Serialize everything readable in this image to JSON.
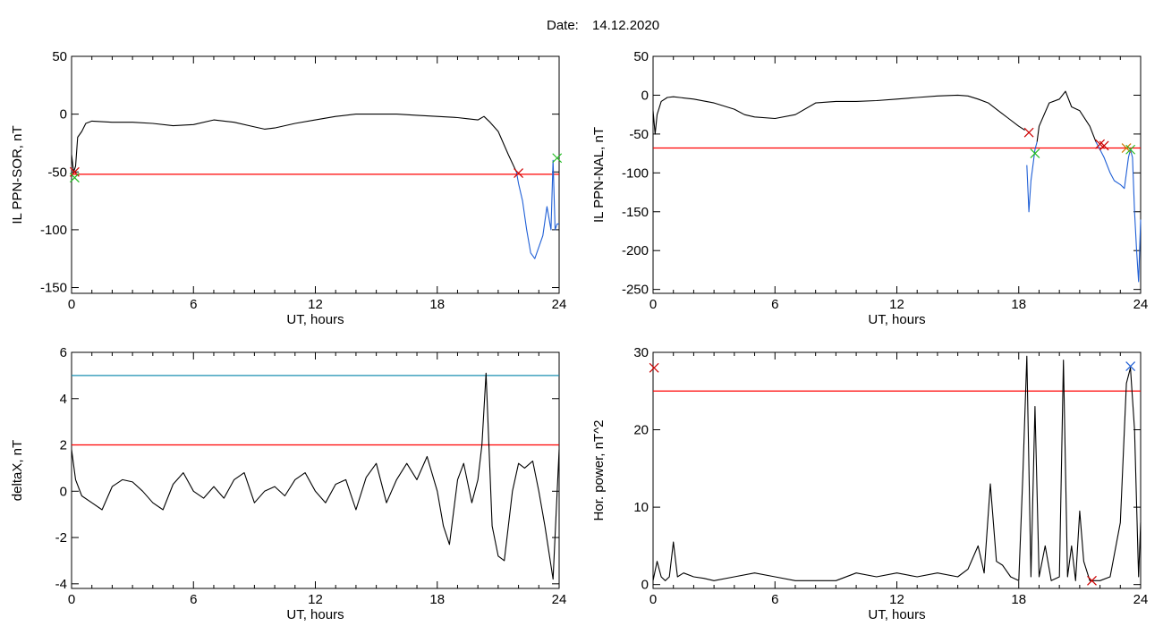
{
  "header": {
    "date_label": "Date:",
    "date_value": "14.12.2020"
  },
  "colors": {
    "trace": "#000000",
    "threshold": "#ff0000",
    "blue_trace": "#1f5fd6",
    "marker_red": "#cc0000",
    "marker_green": "#22bb22",
    "marker_blue": "#1f5fd6",
    "marker_orange": "#cc7700",
    "threshold_cyan": "#1a8fb0"
  },
  "chart_data": [
    {
      "type": "line",
      "xlabel": "UT, hours",
      "ylabel": "IL PPN-SOR, nT",
      "xlim": [
        0,
        24
      ],
      "ylim": [
        -155,
        50
      ],
      "xticks": [
        0,
        6,
        12,
        18,
        24
      ],
      "yticks": [
        50,
        0,
        -50,
        -100,
        -150
      ],
      "threshold": -52,
      "series": [
        {
          "color": "black",
          "x": [
            0,
            0.1,
            0.2,
            0.3,
            0.5,
            0.7,
            1,
            2,
            3,
            4,
            5,
            6,
            7,
            8,
            9,
            9.5,
            10,
            11,
            12,
            13,
            14,
            15,
            16,
            17,
            18,
            19,
            19.5,
            20,
            20.3,
            20.6,
            21,
            21.5,
            21.9
          ],
          "y": [
            -35,
            -50,
            -45,
            -20,
            -15,
            -8,
            -6,
            -7,
            -7,
            -8,
            -10,
            -9,
            -5,
            -7,
            -11,
            -13,
            -12,
            -8,
            -5,
            -2,
            0,
            0,
            0,
            -1,
            -2,
            -3,
            -4,
            -5,
            -2,
            -7,
            -15,
            -35,
            -50
          ]
        },
        {
          "color": "blue",
          "x": [
            21.9,
            22,
            22.2,
            22.4,
            22.6,
            22.8,
            23,
            23.2,
            23.4,
            23.6,
            23.7,
            23.8,
            23.9,
            24
          ],
          "y": [
            -50,
            -60,
            -75,
            -100,
            -120,
            -125,
            -115,
            -105,
            -80,
            -100,
            -40,
            -100,
            -95,
            -95
          ]
        }
      ],
      "markers": [
        {
          "symbol": "x",
          "color": "red",
          "x": 0.15,
          "y": -50
        },
        {
          "symbol": "x",
          "color": "green",
          "x": 0.15,
          "y": -55
        },
        {
          "symbol": "x",
          "color": "red",
          "x": 22.0,
          "y": -51
        },
        {
          "symbol": "x",
          "color": "green",
          "x": 23.9,
          "y": -38
        }
      ]
    },
    {
      "type": "line",
      "xlabel": "UT, hours",
      "ylabel": "IL PPN-NAL, nT",
      "xlim": [
        0,
        24
      ],
      "ylim": [
        -255,
        50
      ],
      "xticks": [
        0,
        6,
        12,
        18,
        24
      ],
      "yticks": [
        50,
        0,
        -50,
        -100,
        -150,
        -200,
        -250
      ],
      "threshold": -68,
      "series": [
        {
          "color": "black",
          "x": [
            0,
            0.1,
            0.2,
            0.4,
            0.7,
            1,
            2,
            3,
            4,
            4.5,
            5,
            6,
            7,
            8,
            9,
            10,
            11,
            12,
            13,
            14,
            15,
            15.5,
            16,
            16.5,
            17,
            17.5,
            18,
            18.3
          ],
          "y": [
            -20,
            -50,
            -25,
            -8,
            -3,
            -2,
            -5,
            -10,
            -18,
            -25,
            -28,
            -30,
            -25,
            -10,
            -8,
            -8,
            -7,
            -5,
            -3,
            -1,
            0,
            -1,
            -5,
            -10,
            -20,
            -30,
            -40,
            -45
          ]
        },
        {
          "color": "blue",
          "x": [
            18.4,
            18.5,
            18.6,
            18.8,
            18.9
          ],
          "y": [
            -90,
            -150,
            -110,
            -70,
            -60
          ]
        },
        {
          "color": "black",
          "x": [
            18.9,
            19,
            19.5,
            20,
            20.3,
            20.6,
            21,
            21.5,
            21.8
          ],
          "y": [
            -60,
            -40,
            -10,
            -5,
            5,
            -15,
            -20,
            -40,
            -60
          ]
        },
        {
          "color": "blue",
          "x": [
            21.8,
            22,
            22.2,
            22.5,
            22.7,
            23,
            23.2,
            23.4,
            23.5,
            23.6,
            23.7,
            23.8,
            23.9,
            24
          ],
          "y": [
            -60,
            -70,
            -80,
            -100,
            -110,
            -115,
            -120,
            -80,
            -70,
            -80,
            -150,
            -200,
            -240,
            -160
          ]
        }
      ],
      "markers": [
        {
          "symbol": "x",
          "color": "red",
          "x": 18.5,
          "y": -48
        },
        {
          "symbol": "x",
          "color": "green",
          "x": 18.8,
          "y": -75
        },
        {
          "symbol": "x",
          "color": "red",
          "x": 22.0,
          "y": -63
        },
        {
          "symbol": "x",
          "color": "red",
          "x": 22.2,
          "y": -65
        },
        {
          "symbol": "x",
          "color": "orange",
          "x": 23.3,
          "y": -68
        },
        {
          "symbol": "x",
          "color": "green",
          "x": 23.5,
          "y": -70
        }
      ]
    },
    {
      "type": "line",
      "xlabel": "UT, hours",
      "ylabel": "deltaX, nT",
      "xlim": [
        0,
        24
      ],
      "ylim": [
        -4.2,
        6
      ],
      "xticks": [
        0,
        6,
        12,
        18,
        24
      ],
      "yticks": [
        6,
        4,
        2,
        0,
        -2,
        -4
      ],
      "threshold": 2,
      "threshold2": 5,
      "series": [
        {
          "color": "black",
          "x": [
            0,
            0.2,
            0.5,
            1,
            1.5,
            2,
            2.5,
            3,
            3.5,
            4,
            4.5,
            5,
            5.5,
            6,
            6.5,
            7,
            7.5,
            8,
            8.5,
            9,
            9.5,
            10,
            10.5,
            11,
            11.5,
            12,
            12.5,
            13,
            13.5,
            14,
            14.5,
            15,
            15.5,
            16,
            16.5,
            17,
            17.5,
            18,
            18.3,
            18.6,
            19,
            19.3,
            19.7,
            20,
            20.2,
            20.4,
            20.7,
            21,
            21.3,
            21.7,
            22,
            22.3,
            22.7,
            23,
            23.3,
            23.7,
            24
          ],
          "y": [
            1.8,
            0.5,
            -0.2,
            -0.5,
            -0.8,
            0.2,
            0.5,
            0.4,
            0,
            -0.5,
            -0.8,
            0.3,
            0.8,
            0,
            -0.3,
            0.2,
            -0.3,
            0.5,
            0.8,
            -0.5,
            0,
            0.2,
            -0.2,
            0.5,
            0.8,
            0,
            -0.5,
            0.3,
            0.5,
            -0.8,
            0.6,
            1.2,
            -0.5,
            0.5,
            1.2,
            0.5,
            1.5,
            0,
            -1.5,
            -2.3,
            0.5,
            1.2,
            -0.5,
            0.5,
            2,
            5.1,
            -1.5,
            -2.8,
            -3,
            0,
            1.2,
            1,
            1.3,
            0,
            -1.5,
            -3.8,
            1.8
          ]
        }
      ],
      "markers": []
    },
    {
      "type": "line",
      "xlabel": "UT, hours",
      "ylabel": "Hor. power, nT^2",
      "xlim": [
        0,
        24
      ],
      "ylim": [
        -0.5,
        30
      ],
      "xticks": [
        0,
        6,
        12,
        18,
        24
      ],
      "yticks": [
        30,
        20,
        10,
        0
      ],
      "threshold": 25,
      "series": [
        {
          "color": "black",
          "x": [
            0,
            0.2,
            0.4,
            0.6,
            0.8,
            1,
            1.2,
            1.5,
            2,
            2.5,
            3,
            4,
            5,
            6,
            7,
            8,
            9,
            10,
            11,
            12,
            13,
            14,
            15,
            15.5,
            16,
            16.3,
            16.6,
            16.9,
            17.2,
            17.6,
            18,
            18.2,
            18.4,
            18.6,
            18.8,
            19,
            19.3,
            19.6,
            20,
            20.2,
            20.4,
            20.6,
            20.8,
            21,
            21.2,
            21.5,
            22,
            22.5,
            23,
            23.3,
            23.5,
            23.7,
            23.9,
            24
          ],
          "y": [
            0.5,
            3,
            1,
            0.5,
            1,
            5.5,
            1,
            1.5,
            1,
            0.8,
            0.5,
            1,
            1.5,
            1,
            0.5,
            0.5,
            0.5,
            1.5,
            1,
            1.5,
            1,
            1.5,
            1,
            2,
            5,
            1.5,
            13,
            3,
            2.5,
            1,
            0.5,
            14,
            29.5,
            1,
            23,
            1,
            5,
            0.5,
            1,
            29,
            1,
            5,
            0.5,
            9.5,
            3,
            0.5,
            0.5,
            1,
            8,
            26,
            28,
            20,
            1,
            8
          ]
        }
      ],
      "markers": [
        {
          "symbol": "x",
          "color": "red",
          "x": 0.05,
          "y": 28
        },
        {
          "symbol": "x",
          "color": "red",
          "x": 21.6,
          "y": 0.5
        },
        {
          "symbol": "x",
          "color": "blue",
          "x": 23.5,
          "y": 28.2
        }
      ]
    }
  ]
}
